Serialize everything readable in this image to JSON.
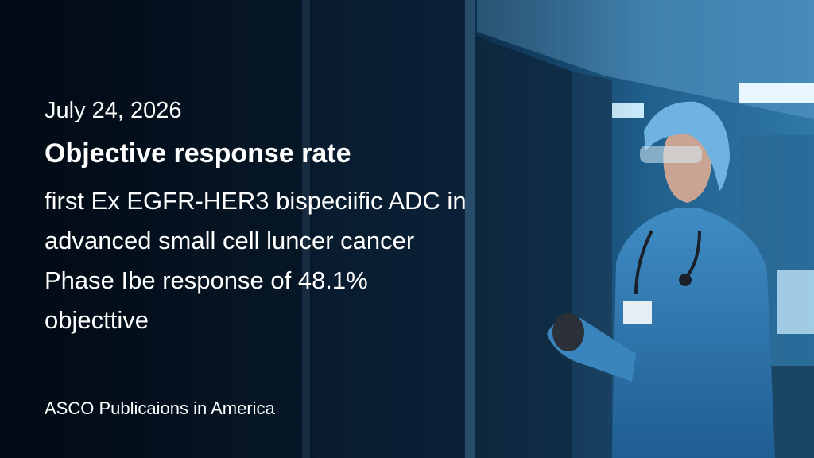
{
  "date": "July 24, 2026",
  "headline": "Objective response rate",
  "body_lines": [
    "first Ex EGFR-HER3 bispeciific ADC in",
    "advanced small cell luncer cancer",
    "Phase Ibe response of 48.1%",
    "objecttive"
  ],
  "source": "ASCO Publicaions in America"
}
